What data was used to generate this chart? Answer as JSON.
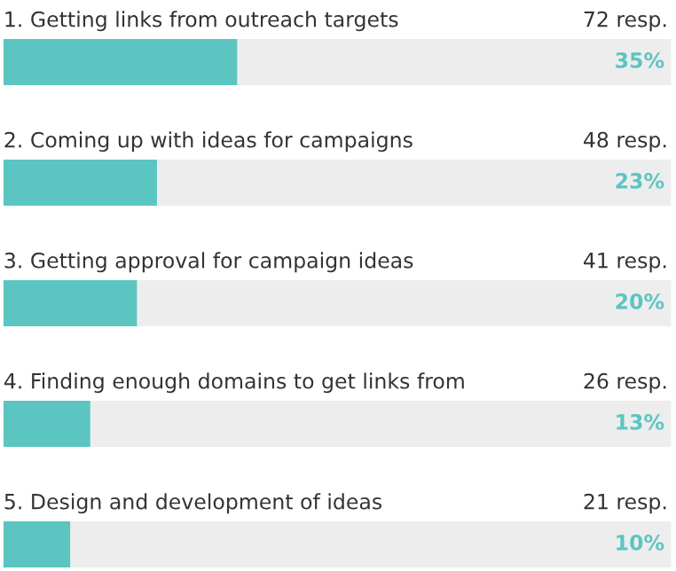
{
  "chart_data": {
    "type": "bar",
    "orientation": "horizontal",
    "categories": [
      "1. Getting links from outreach targets",
      "2. Coming up with ideas for campaigns",
      "3. Getting approval for campaign ideas",
      "4. Finding enough domains to get links from",
      "5. Design and development of ideas"
    ],
    "values": [
      35,
      23,
      20,
      13,
      10
    ],
    "value_labels": [
      "35%",
      "23%",
      "20%",
      "13%",
      "10%"
    ],
    "annotations": [
      "72 resp.",
      "48 resp.",
      "41 resp.",
      "26 resp.",
      "21 resp."
    ],
    "color": "#5bc5c2",
    "xlim": [
      0,
      100
    ]
  }
}
